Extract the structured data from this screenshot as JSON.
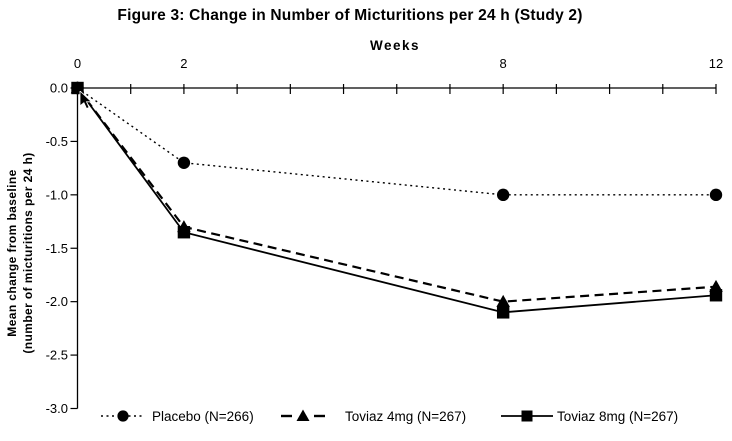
{
  "chart_data": {
    "type": "line",
    "title": "Figure 3: Change in Number of Micturitions per 24 h (Study 2)",
    "xlabel": "Weeks",
    "ylabel_line1": "Mean change from baseline",
    "ylabel_line2": "(number of micturitions per 24 h)",
    "x": [
      0,
      2,
      8,
      12
    ],
    "xlim": [
      0,
      12
    ],
    "ylim": [
      -3.0,
      0
    ],
    "x_major_ticks": [
      0,
      2,
      8,
      12
    ],
    "x_minor_tick_interval": 1,
    "y_ticks": [
      0,
      -0.5,
      -1.0,
      -1.5,
      -2.0,
      -2.5,
      -3.0
    ],
    "grid": false,
    "legend_position": "bottom",
    "series": [
      {
        "name": "Placebo (N=266)",
        "marker": "circle",
        "line_style": "dotted",
        "values": [
          0,
          -0.7,
          -1.0,
          -1.0
        ]
      },
      {
        "name": "Toviaz 4mg (N=267)",
        "marker": "triangle",
        "line_style": "dashed",
        "values": [
          0,
          -1.3,
          -2.0,
          -1.86
        ]
      },
      {
        "name": "Toviaz 8mg (N=267)",
        "marker": "square",
        "line_style": "solid",
        "values": [
          0,
          -1.35,
          -2.1,
          -1.94
        ]
      }
    ]
  },
  "colors": {
    "line": "#000000",
    "background": "#ffffff",
    "text": "#000000"
  }
}
